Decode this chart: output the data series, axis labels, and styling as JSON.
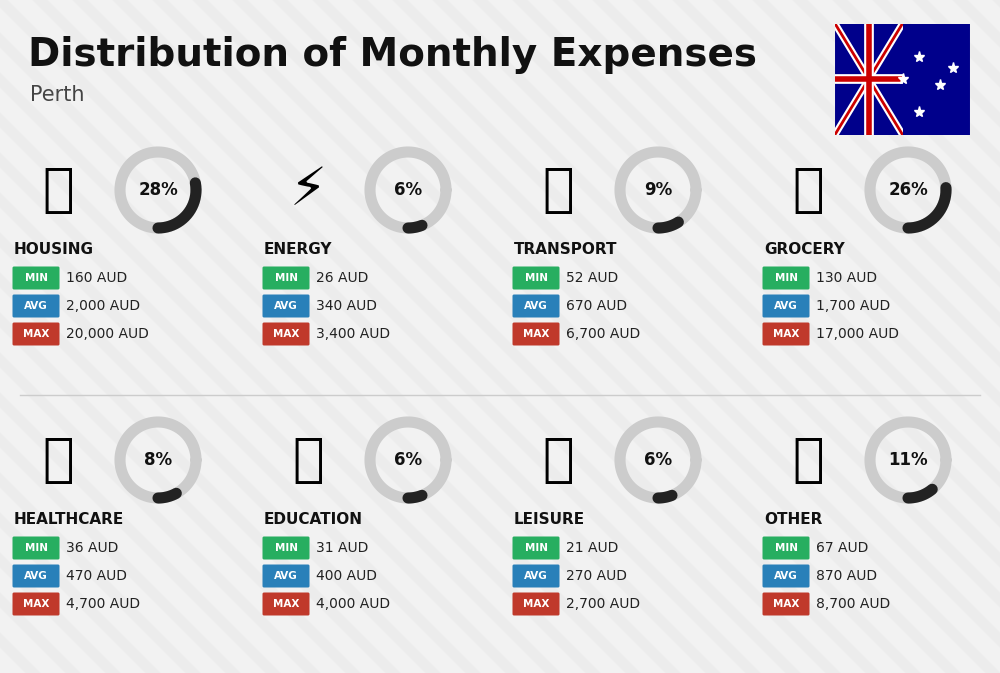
{
  "title": "Distribution of Monthly Expenses",
  "subtitle": "Perth",
  "bg_color": "#f2f2f2",
  "categories": [
    {
      "name": "HOUSING",
      "pct": 28,
      "min_val": "160 AUD",
      "avg_val": "2,000 AUD",
      "max_val": "20,000 AUD",
      "col": 0,
      "row": 0
    },
    {
      "name": "ENERGY",
      "pct": 6,
      "min_val": "26 AUD",
      "avg_val": "340 AUD",
      "max_val": "3,400 AUD",
      "col": 1,
      "row": 0
    },
    {
      "name": "TRANSPORT",
      "pct": 9,
      "min_val": "52 AUD",
      "avg_val": "670 AUD",
      "max_val": "6,700 AUD",
      "col": 2,
      "row": 0
    },
    {
      "name": "GROCERY",
      "pct": 26,
      "min_val": "130 AUD",
      "avg_val": "1,700 AUD",
      "max_val": "17,000 AUD",
      "col": 3,
      "row": 0
    },
    {
      "name": "HEALTHCARE",
      "pct": 8,
      "min_val": "36 AUD",
      "avg_val": "470 AUD",
      "max_val": "4,700 AUD",
      "col": 0,
      "row": 1
    },
    {
      "name": "EDUCATION",
      "pct": 6,
      "min_val": "31 AUD",
      "avg_val": "400 AUD",
      "max_val": "4,000 AUD",
      "col": 1,
      "row": 1
    },
    {
      "name": "LEISURE",
      "pct": 6,
      "min_val": "21 AUD",
      "avg_val": "270 AUD",
      "max_val": "2,700 AUD",
      "col": 2,
      "row": 1
    },
    {
      "name": "OTHER",
      "pct": 11,
      "min_val": "67 AUD",
      "avg_val": "870 AUD",
      "max_val": "8,700 AUD",
      "col": 3,
      "row": 1
    }
  ],
  "color_min": "#27ae60",
  "color_avg": "#2980b9",
  "color_max": "#c0392b",
  "arc_bg": "#cccccc",
  "arc_fg": "#222222",
  "icon_emojis": {
    "HOUSING": "🏙",
    "ENERGY": "⚡",
    "TRANSPORT": "🚌",
    "GROCERY": "🛒",
    "HEALTHCARE": "💙",
    "EDUCATION": "🎓",
    "LEISURE": "🛍",
    "OTHER": "💰"
  }
}
